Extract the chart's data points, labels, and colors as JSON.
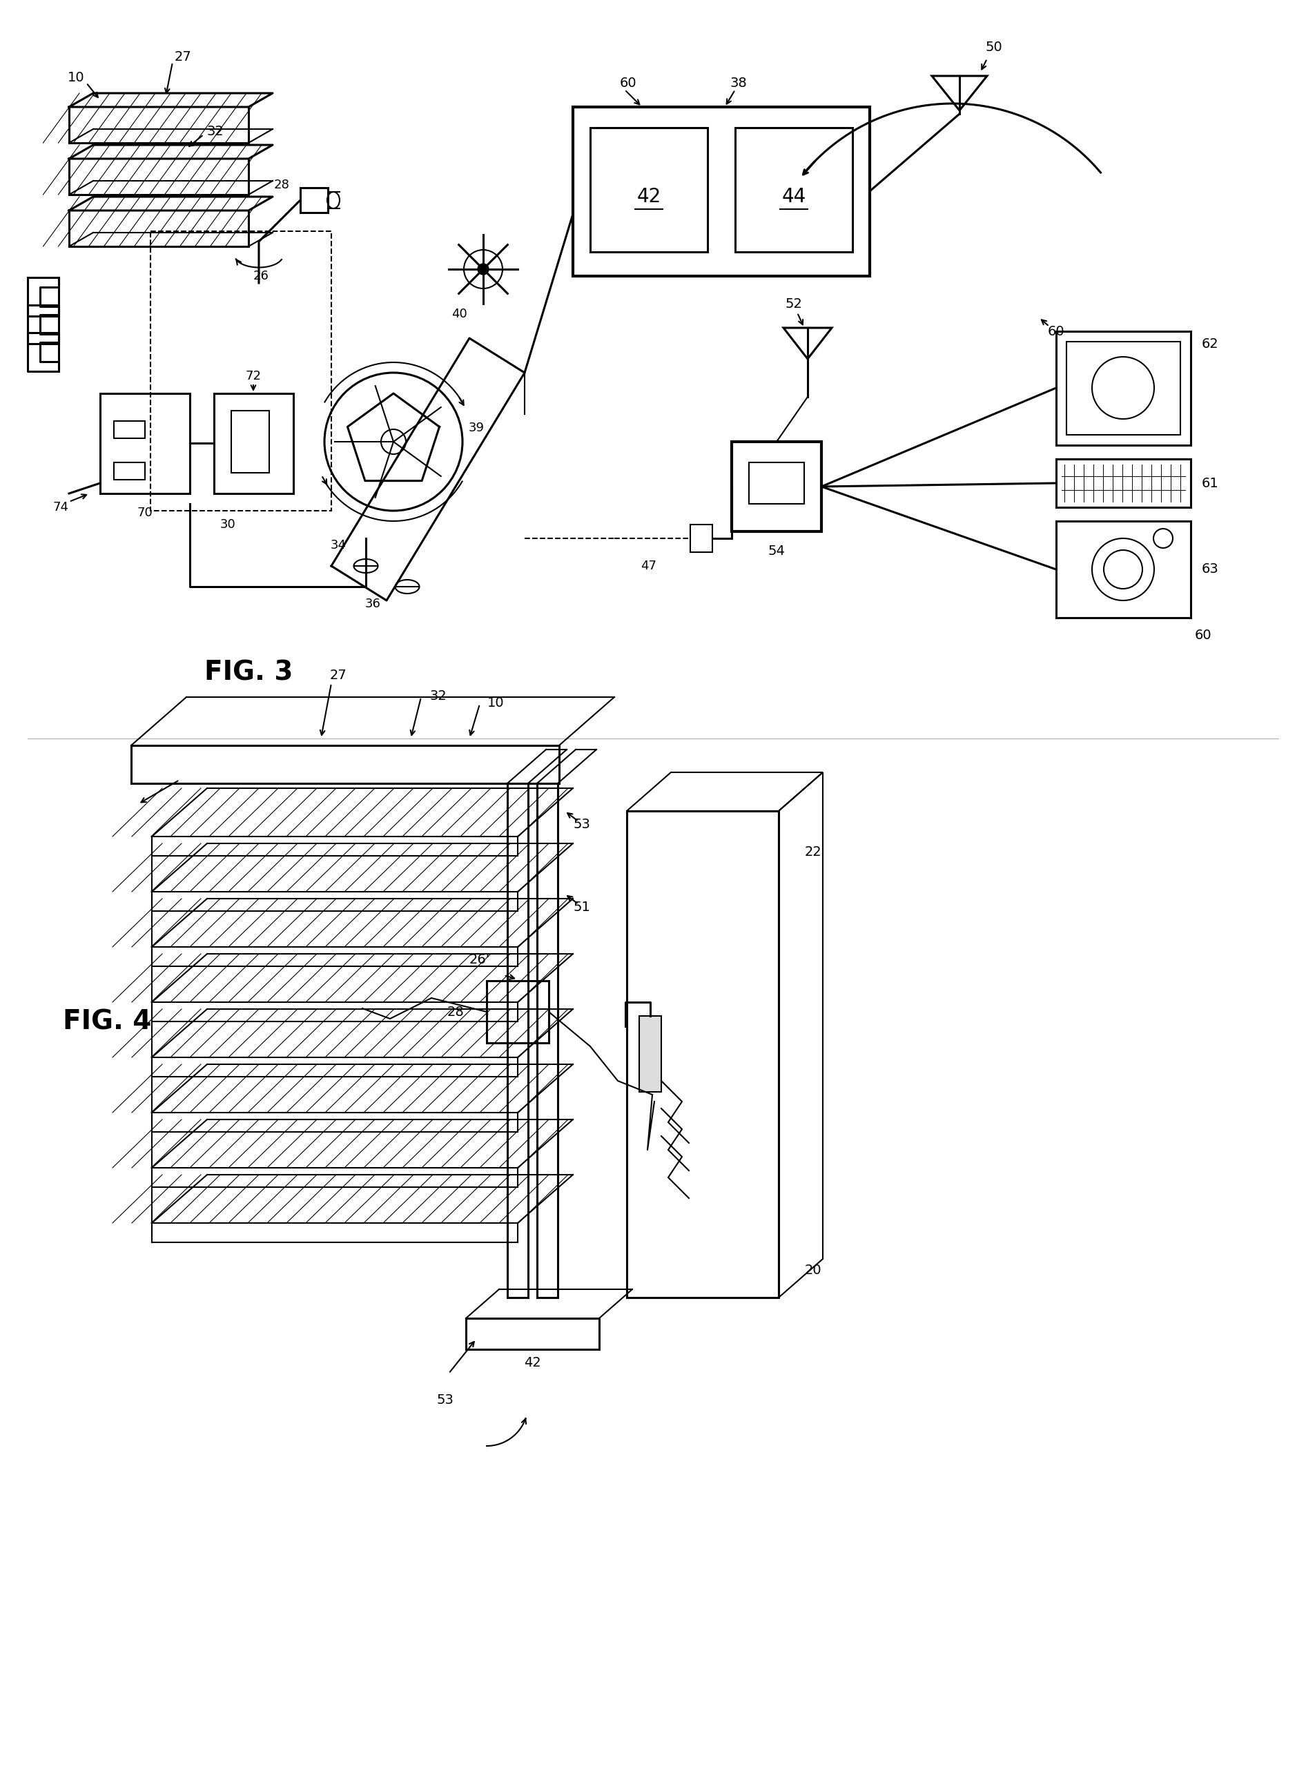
{
  "bg_color": "#ffffff",
  "line_color": "#000000",
  "fig_width": 18.92,
  "fig_height": 25.79,
  "fig3_label": "FIG. 3",
  "fig4_label": "FIG. 4"
}
